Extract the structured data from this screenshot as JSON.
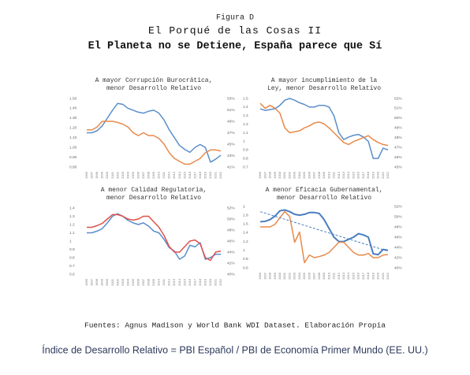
{
  "figure": {
    "label": "Figura D",
    "title": "El Porqué de las Cosas II",
    "subtitle": "El Planeta no se Detiene, España parece que Sí"
  },
  "source": "Fuentes: Agnus Madison y World Bank WDI Dataset. Elaboración Propia",
  "note": "Índice de Desarrollo Relativo = PBI Español / PBI de Economía Primer Mundo (EE. UU.)",
  "chart_data": [
    {
      "type": "line",
      "title": [
        "A mayor Corrupción Burocrática,",
        "menor Desarrollo Relativo"
      ],
      "categories": [
        "1996",
        "1997",
        "1998",
        "1999",
        "2000",
        "2001",
        "2002",
        "2003",
        "2004",
        "2005",
        "2006",
        "2007",
        "2008",
        "2009",
        "2010",
        "2011",
        "2012",
        "2013",
        "2014",
        "2015",
        "2016",
        "2017",
        "2018",
        "2019",
        "2020",
        "2021",
        "2022"
      ],
      "series": [
        {
          "color": "#5b8fc9",
          "values": [
            1.15,
            1.15,
            1.17,
            1.22,
            1.3,
            1.38,
            1.45,
            1.44,
            1.4,
            1.38,
            1.36,
            1.35,
            1.37,
            1.38,
            1.35,
            1.28,
            1.18,
            1.1,
            1.02,
            0.98,
            0.95,
            1.0,
            1.03,
            1.0,
            0.85,
            0.88,
            0.92
          ]
        },
        {
          "color": "#e8894a",
          "axis": "y2",
          "values": [
            47.5,
            47.5,
            48,
            49,
            49,
            49,
            48.8,
            48.5,
            48,
            47,
            46.5,
            47,
            46.5,
            46.5,
            46,
            45,
            43.5,
            42.5,
            42,
            41.5,
            41.5,
            42,
            42.5,
            43.5,
            44,
            44,
            43.8
          ]
        }
      ],
      "ylim": [
        0.8,
        1.5
      ],
      "yticks": [
        {
          "value": 0.8,
          "label": "0.80"
        },
        {
          "value": 0.9,
          "label": "0.90"
        },
        {
          "value": 1.0,
          "label": "1.00"
        },
        {
          "value": 1.1,
          "label": "1.10"
        },
        {
          "value": 1.2,
          "label": "1.20"
        },
        {
          "value": 1.3,
          "label": "1.30"
        },
        {
          "value": 1.4,
          "label": "1.40"
        },
        {
          "value": 1.5,
          "label": "1.50"
        }
      ],
      "y2lim": [
        41,
        53
      ],
      "y2ticks": [
        {
          "value": 41,
          "label": "41%"
        },
        {
          "value": 43,
          "label": "43%"
        },
        {
          "value": 45,
          "label": "45%"
        },
        {
          "value": 47,
          "label": "47%"
        },
        {
          "value": 49,
          "label": "49%"
        },
        {
          "value": 51,
          "label": "51%"
        },
        {
          "value": 53,
          "label": "53%"
        }
      ]
    },
    {
      "type": "line",
      "title": [
        "A mayor incumplimiento de la",
        "Ley, menor Desarrollo Relativo"
      ],
      "categories": [
        "1996",
        "1997",
        "1998",
        "1999",
        "2000",
        "2001",
        "2002",
        "2003",
        "2004",
        "2005",
        "2006",
        "2007",
        "2008",
        "2009",
        "2010",
        "2011",
        "2012",
        "2013",
        "2014",
        "2015",
        "2016",
        "2017",
        "2018",
        "2019",
        "2020",
        "2021",
        "2022"
      ],
      "series": [
        {
          "color": "#5b8fc9",
          "values": [
            1.38,
            1.36,
            1.37,
            1.38,
            1.42,
            1.48,
            1.5,
            1.48,
            1.45,
            1.43,
            1.4,
            1.4,
            1.42,
            1.42,
            1.4,
            1.3,
            1.1,
            1.02,
            1.05,
            1.07,
            1.08,
            1.05,
            1.0,
            0.8,
            0.8,
            0.92,
            0.9
          ]
        },
        {
          "color": "#e8894a",
          "axis": "y2",
          "values": [
            51.5,
            51,
            51.3,
            51,
            50.5,
            49,
            48.5,
            48.6,
            48.7,
            49,
            49.2,
            49.5,
            49.6,
            49.4,
            49,
            48.5,
            48,
            47.5,
            47.3,
            47.6,
            47.8,
            48,
            48.2,
            47.8,
            47.5,
            47.3,
            47.2
          ]
        }
      ],
      "ylim": [
        0.7,
        1.5
      ],
      "yticks": [
        0.7,
        0.8,
        0.9,
        1,
        1.1,
        1.2,
        1.3,
        1.4,
        1.5
      ],
      "y2lim": [
        45,
        52
      ],
      "y2ticks": [
        {
          "value": 45,
          "label": "45%"
        },
        {
          "value": 46,
          "label": "46%"
        },
        {
          "value": 47,
          "label": "47%"
        },
        {
          "value": 48,
          "label": "48%"
        },
        {
          "value": 49,
          "label": "49%"
        },
        {
          "value": 50,
          "label": "50%"
        },
        {
          "value": 51,
          "label": "51%"
        },
        {
          "value": 52,
          "label": "52%"
        }
      ]
    },
    {
      "type": "line",
      "title": [
        "A menor Calidad Regulatoria,",
        "menor Desarrollo Relativo"
      ],
      "categories": [
        "1996",
        "1997",
        "1998",
        "1999",
        "2000",
        "2001",
        "2002",
        "2003",
        "2004",
        "2005",
        "2006",
        "2007",
        "2008",
        "2009",
        "2010",
        "2011",
        "2012",
        "2013",
        "2014",
        "2015",
        "2016",
        "2017",
        "2018",
        "2019",
        "2020",
        "2021",
        "2022"
      ],
      "series": [
        {
          "color": "#5b8fc9",
          "values": [
            1.1,
            1.1,
            1.12,
            1.15,
            1.22,
            1.3,
            1.33,
            1.3,
            1.25,
            1.22,
            1.2,
            1.22,
            1.18,
            1.12,
            1.1,
            1.02,
            0.92,
            0.88,
            0.78,
            0.82,
            0.95,
            0.93,
            0.98,
            0.78,
            0.8,
            0.84,
            0.84
          ]
        },
        {
          "color": "#e0504a",
          "axis": "y2",
          "values": [
            48.5,
            48.5,
            48.8,
            49.2,
            50,
            50.8,
            50.8,
            50.5,
            50,
            49.8,
            50,
            50.5,
            50.5,
            49.5,
            48.5,
            47,
            45,
            44,
            44,
            45,
            46,
            46.2,
            45.5,
            43,
            42.5,
            44,
            44.2
          ]
        }
      ],
      "ylim": [
        0.6,
        1.4
      ],
      "yticks": [
        0.6,
        0.7,
        0.8,
        0.9,
        1,
        1.1,
        1.2,
        1.3,
        1.4
      ],
      "y2lim": [
        40,
        52
      ],
      "y2ticks": [
        {
          "value": 40,
          "label": "40%"
        },
        {
          "value": 42,
          "label": "42%"
        },
        {
          "value": 44,
          "label": "44%"
        },
        {
          "value": 46,
          "label": "46%"
        },
        {
          "value": 48,
          "label": "48%"
        },
        {
          "value": 50,
          "label": "50%"
        },
        {
          "value": 52,
          "label": "52%"
        }
      ]
    },
    {
      "type": "line",
      "title": [
        "A menor Eficacia Gubernamental,",
        "menor Desarrollo Relativo"
      ],
      "categories": [
        "1996",
        "1997",
        "1998",
        "1999",
        "2000",
        "2001",
        "2002",
        "2003",
        "2004",
        "2005",
        "2006",
        "2007",
        "2008",
        "2009",
        "2010",
        "2011",
        "2012",
        "2013",
        "2014",
        "2015",
        "2016",
        "2017",
        "2018",
        "2019",
        "2020",
        "2021",
        "2022"
      ],
      "series": [
        {
          "color": "#4a7ebf",
          "width": 2,
          "values": [
            1.65,
            1.66,
            1.7,
            1.78,
            1.9,
            1.92,
            1.88,
            1.82,
            1.8,
            1.82,
            1.86,
            1.86,
            1.84,
            1.7,
            1.5,
            1.3,
            1.2,
            1.2,
            1.25,
            1.3,
            1.38,
            1.35,
            1.3,
            0.92,
            0.9,
            1.02,
            1.0
          ]
        },
        {
          "color": "#e8894a",
          "axis": "y2",
          "values": [
            48,
            48,
            48,
            48.5,
            49.8,
            51,
            50,
            45,
            47,
            41,
            42.5,
            42,
            42.2,
            42.5,
            43,
            44,
            45,
            45,
            44,
            43,
            42.5,
            42.5,
            42.8,
            42,
            42,
            42.5,
            42.6
          ]
        }
      ],
      "trend": {
        "color": "#4a7ebf",
        "dashed": true,
        "values": [
          1.88,
          0.98
        ]
      },
      "ylim": [
        0.6,
        2
      ],
      "yticks": [
        0.6,
        0.8,
        1,
        1.2,
        1.4,
        1.6,
        1.8,
        2
      ],
      "y2lim": [
        40,
        52
      ],
      "y2ticks": [
        {
          "value": 40,
          "label": "40%"
        },
        {
          "value": 42,
          "label": "42%"
        },
        {
          "value": 44,
          "label": "44%"
        },
        {
          "value": 46,
          "label": "46%"
        },
        {
          "value": 48,
          "label": "48%"
        },
        {
          "value": 50,
          "label": "50%"
        },
        {
          "value": 52,
          "label": "52%"
        }
      ]
    }
  ]
}
